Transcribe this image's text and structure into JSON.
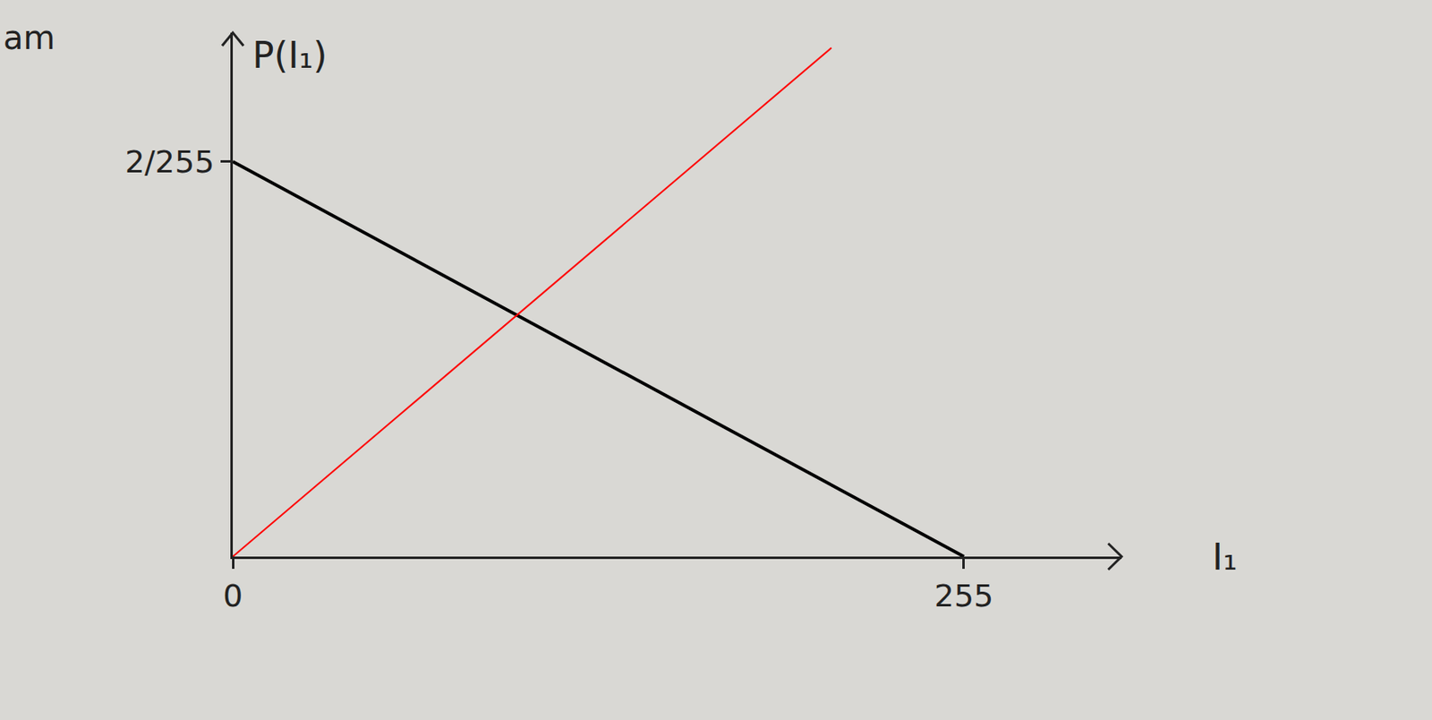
{
  "chart_data": {
    "type": "line",
    "xlabel": "I₁",
    "ylabel": "P(I₁)",
    "annotations": [
      "am"
    ],
    "series": [
      {
        "color": "#000000",
        "x": [
          0,
          255
        ],
        "values": [
          0.00784,
          0
        ]
      },
      {
        "color": "#ff0000",
        "x": [
          0,
          208.8
        ],
        "values": [
          0,
          0.0101
        ]
      }
    ],
    "xlim": [
      0,
      310
    ],
    "ylim": [
      0,
      0.0104
    ],
    "xticks": [
      0,
      255
    ],
    "yticks": [
      {
        "value": 0.00784,
        "label": "2/255"
      }
    ],
    "grid": false
  }
}
